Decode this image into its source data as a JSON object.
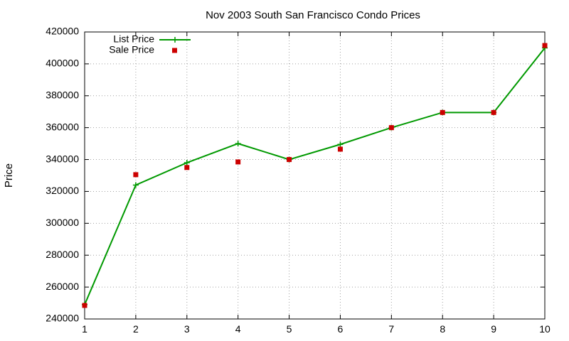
{
  "chart_data": {
    "type": "line",
    "title": "Nov 2003 South San Francisco Condo Prices",
    "xlabel": "",
    "ylabel": "Price",
    "x": [
      1,
      2,
      3,
      4,
      5,
      6,
      7,
      8,
      9,
      10
    ],
    "xlim": [
      1,
      10
    ],
    "ylim": [
      240000,
      420000
    ],
    "y_ticks": [
      240000,
      260000,
      280000,
      300000,
      320000,
      340000,
      360000,
      380000,
      400000,
      420000
    ],
    "x_ticks": [
      1,
      2,
      3,
      4,
      5,
      6,
      7,
      8,
      9,
      10
    ],
    "grid": true,
    "legend_position": "top-left",
    "series": [
      {
        "name": "List Price",
        "style": "line-with-plus-markers",
        "color": "#009900",
        "values": [
          249000,
          324000,
          338000,
          350000,
          340000,
          349500,
          360000,
          369500,
          369500,
          410000
        ]
      },
      {
        "name": "Sale Price",
        "style": "square-markers",
        "color": "#cc0000",
        "values": [
          248500,
          330500,
          335000,
          338500,
          340000,
          346500,
          360000,
          369500,
          369500,
          411500
        ]
      }
    ]
  }
}
